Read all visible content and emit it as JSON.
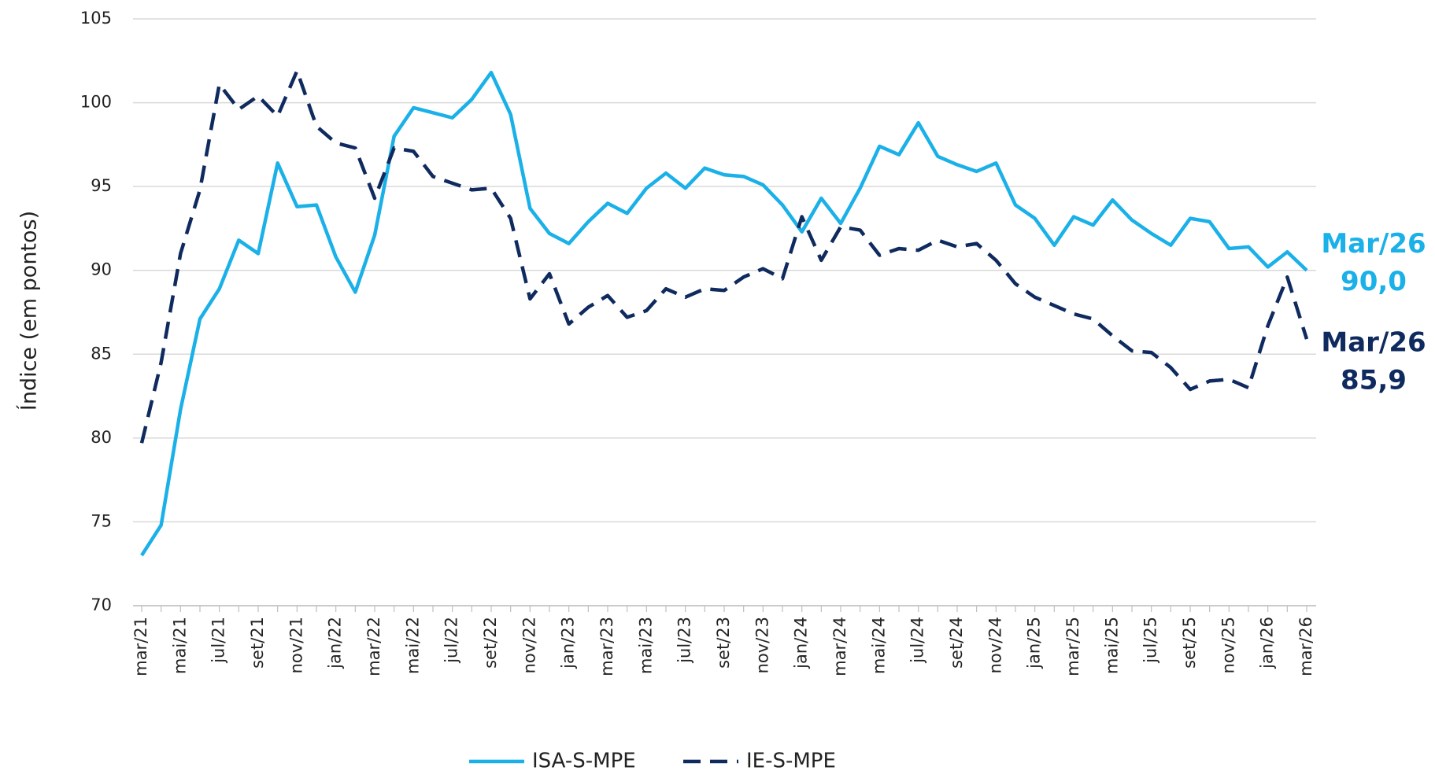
{
  "chart_data": {
    "type": "line",
    "y_label": "Índice (em pontos)",
    "categories": [
      "mar/21",
      null,
      "mai/21",
      null,
      "jul/21",
      null,
      "set/21",
      null,
      "nov/21",
      null,
      "jan/22",
      null,
      "mar/22",
      null,
      "mai/22",
      null,
      "jul/22",
      null,
      "set/22",
      null,
      "nov/22",
      null,
      "jan/23",
      null,
      "mar/23",
      null,
      "mai/23",
      null,
      "jul/23",
      null,
      "set/23",
      null,
      "nov/23",
      null,
      "jan/24",
      null,
      "mar/24",
      null,
      "mai/24",
      null,
      "jul/24",
      null,
      "set/24",
      null,
      "nov/24",
      null,
      "jan/25",
      null,
      "mar/25",
      null,
      "mai/25",
      null,
      "jul/25",
      null,
      "set/25",
      null,
      "nov/25",
      null,
      "jan/26",
      null,
      "mar/26"
    ],
    "series": [
      {
        "name": "ISA-S-MPE",
        "color": "#1ab0e8",
        "dashed": false,
        "values": [
          73.0,
          74.8,
          81.7,
          87.1,
          88.9,
          91.8,
          91.0,
          96.4,
          93.8,
          93.9,
          90.8,
          88.7,
          92.1,
          98.0,
          99.7,
          99.4,
          99.1,
          100.2,
          101.8,
          99.3,
          93.7,
          92.2,
          91.6,
          92.9,
          94.0,
          93.4,
          94.9,
          95.8,
          94.9,
          96.1,
          95.7,
          95.6,
          95.1,
          93.9,
          92.3,
          94.3,
          92.8,
          94.9,
          97.4,
          96.9,
          98.8,
          96.8,
          96.3,
          95.9,
          96.4,
          93.9,
          93.1,
          91.5,
          93.2,
          92.7,
          94.2,
          93.0,
          92.2,
          91.5,
          93.1,
          92.9,
          91.3,
          91.4,
          90.2,
          91.1,
          90.0
        ],
        "annotation": {
          "label": "Mar/26",
          "value_label": "90,0"
        }
      },
      {
        "name": "IE-S-MPE",
        "color": "#0f2a5e",
        "dashed": true,
        "values": [
          79.7,
          84.5,
          91.0,
          94.8,
          101.1,
          99.6,
          100.4,
          99.2,
          101.9,
          98.6,
          97.6,
          97.3,
          94.3,
          97.3,
          97.1,
          95.6,
          95.2,
          94.8,
          94.9,
          93.1,
          88.3,
          89.8,
          86.8,
          87.8,
          88.5,
          87.2,
          87.6,
          88.9,
          88.4,
          88.9,
          88.8,
          89.6,
          90.1,
          89.5,
          93.2,
          90.6,
          92.6,
          92.4,
          90.9,
          91.3,
          91.2,
          91.8,
          91.4,
          91.6,
          90.6,
          89.2,
          88.4,
          87.9,
          87.4,
          87.1,
          86.1,
          85.2,
          85.1,
          84.2,
          82.9,
          83.4,
          83.5,
          83.0,
          86.7,
          89.6,
          85.9
        ],
        "annotation": {
          "label": "Mar/26",
          "value_label": "85,9"
        }
      }
    ],
    "ylim": [
      70,
      105
    ],
    "yticks": [
      70,
      75,
      80,
      85,
      90,
      95,
      100,
      105
    ],
    "grid": true
  }
}
